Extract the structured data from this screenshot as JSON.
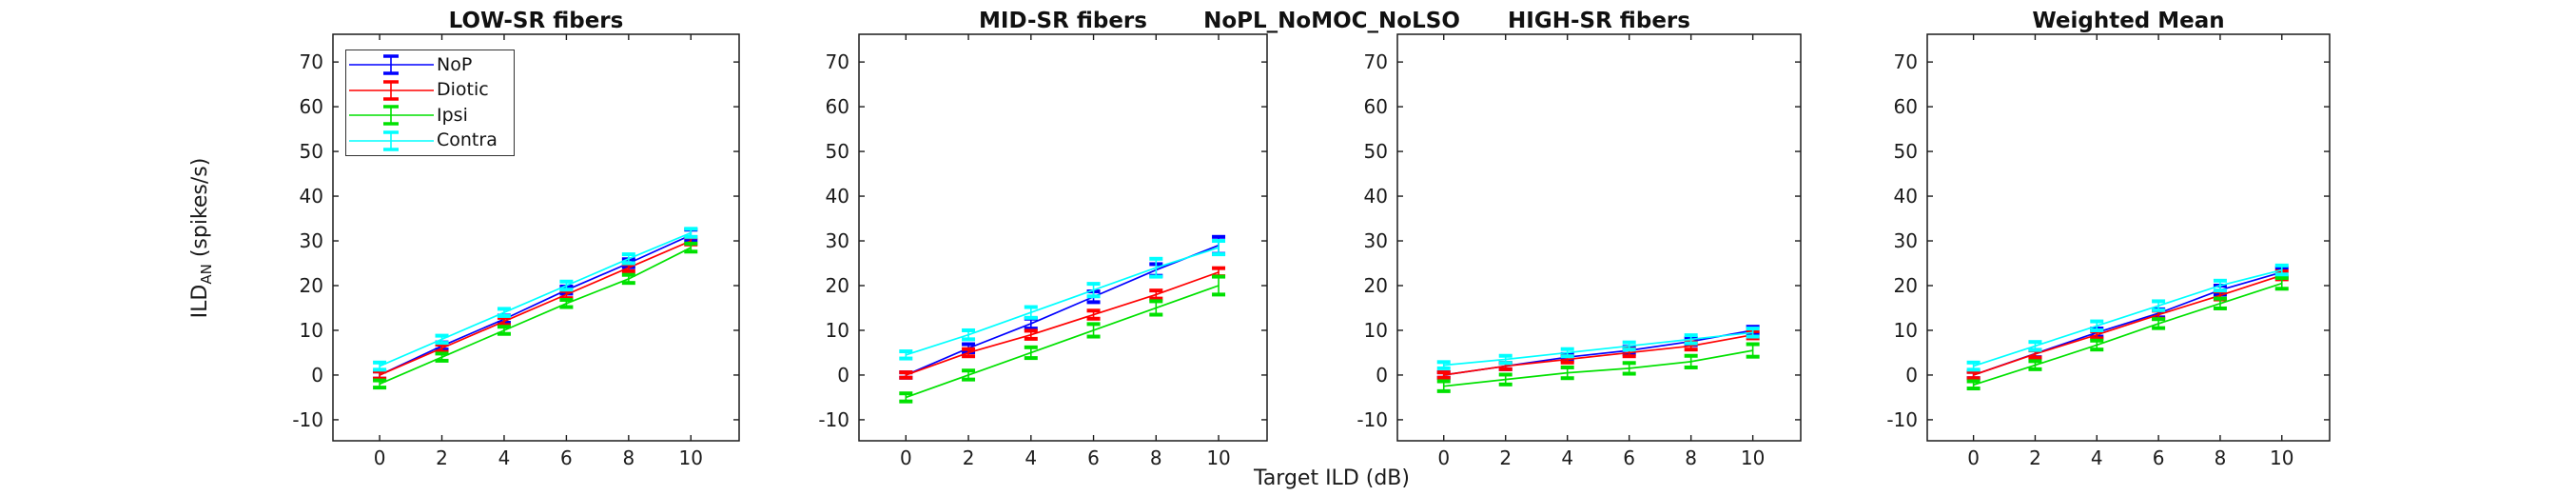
{
  "figure": {
    "suptitle": "NoPL_NoMOC_NoLSO",
    "xlabel": "Target ILD (dB)",
    "ylabel_prefix": "ILD",
    "ylabel_subscript": "AN",
    "ylabel_suffix": " (spikes/s)",
    "background": "#ffffff",
    "axis_color": "#1c1c1c"
  },
  "legend": {
    "position": "top-left-of-first-panel",
    "entries": [
      {
        "label": "NoP",
        "color": "#0000ff"
      },
      {
        "label": "Diotic",
        "color": "#ff0000"
      },
      {
        "label": "Ipsi",
        "color": "#00e100"
      },
      {
        "label": "Contra",
        "color": "#00ffff"
      }
    ]
  },
  "chart_data": [
    {
      "type": "line",
      "title": "LOW-SR fibers",
      "x": [
        0,
        2,
        4,
        6,
        8,
        10
      ],
      "xlim": [
        -1.5,
        11.55
      ],
      "ylim": [
        -14.7,
        76.2
      ],
      "xticks": [
        0,
        2,
        4,
        6,
        8,
        10
      ],
      "yticks": [
        -10,
        0,
        10,
        20,
        30,
        40,
        50,
        60,
        70
      ],
      "grid": false,
      "series": [
        {
          "name": "NoP",
          "color": "#0000ff",
          "values": [
            0,
            6.5,
            12.5,
            19,
            25,
            31.3
          ],
          "errors": [
            0.8,
            0.8,
            0.8,
            0.8,
            0.9,
            1.2
          ]
        },
        {
          "name": "Diotic",
          "color": "#ff0000",
          "values": [
            0,
            6,
            12,
            18,
            24,
            30
          ],
          "errors": [
            0.8,
            0.8,
            0.8,
            0.8,
            0.8,
            0.8
          ]
        },
        {
          "name": "Ipsi",
          "color": "#00e100",
          "values": [
            -2,
            4,
            10,
            16,
            21.5,
            28.5
          ],
          "errors": [
            0.8,
            0.8,
            0.8,
            0.8,
            0.9,
            0.9
          ]
        },
        {
          "name": "Contra",
          "color": "#00ffff",
          "values": [
            2,
            8,
            14,
            20,
            26,
            31.8
          ],
          "errors": [
            0.8,
            0.8,
            0.8,
            0.9,
            1.0,
            0.9
          ]
        }
      ]
    },
    {
      "type": "line",
      "title": "MID-SR fibers",
      "x": [
        0,
        2,
        4,
        6,
        8,
        10
      ],
      "xlim": [
        -1.5,
        11.55
      ],
      "ylim": [
        -14.7,
        76.2
      ],
      "xticks": [
        0,
        2,
        4,
        6,
        8,
        10
      ],
      "yticks": [
        -10,
        0,
        10,
        20,
        30,
        40,
        50,
        60,
        70
      ],
      "grid": false,
      "series": [
        {
          "name": "NoP",
          "color": "#0000ff",
          "values": [
            0,
            6,
            11.5,
            17.5,
            23.5,
            29
          ],
          "errors": [
            0.6,
            0.9,
            1.1,
            1.2,
            1.3,
            1.9
          ]
        },
        {
          "name": "Diotic",
          "color": "#ff0000",
          "values": [
            0,
            5,
            9,
            13.5,
            18,
            23
          ],
          "errors": [
            0.6,
            0.8,
            0.9,
            0.9,
            0.9,
            0.9
          ]
        },
        {
          "name": "Ipsi",
          "color": "#00e100",
          "values": [
            -5,
            0,
            5,
            10,
            15,
            20
          ],
          "errors": [
            0.9,
            1.0,
            1.2,
            1.4,
            1.5,
            2.0
          ]
        },
        {
          "name": "Contra",
          "color": "#00ffff",
          "values": [
            4.5,
            9,
            14,
            19,
            24,
            28.5
          ],
          "errors": [
            0.8,
            1.0,
            1.2,
            1.4,
            2.0,
            1.5
          ]
        }
      ]
    },
    {
      "type": "line",
      "title": "HIGH-SR fibers",
      "x": [
        0,
        2,
        4,
        6,
        8,
        10
      ],
      "xlim": [
        -1.5,
        11.55
      ],
      "ylim": [
        -14.7,
        76.2
      ],
      "xticks": [
        0,
        2,
        4,
        6,
        8,
        10
      ],
      "yticks": [
        -10,
        0,
        10,
        20,
        30,
        40,
        50,
        60,
        70
      ],
      "grid": false,
      "series": [
        {
          "name": "NoP",
          "color": "#0000ff",
          "values": [
            0,
            2,
            4,
            5.5,
            7.5,
            10
          ],
          "errors": [
            0.6,
            0.7,
            0.7,
            0.8,
            0.8,
            0.8
          ]
        },
        {
          "name": "Diotic",
          "color": "#ff0000",
          "values": [
            0,
            2,
            3.5,
            5,
            6.5,
            9
          ],
          "errors": [
            0.6,
            0.7,
            0.7,
            0.8,
            0.8,
            0.8
          ]
        },
        {
          "name": "Ipsi",
          "color": "#00e100",
          "values": [
            -2.5,
            -1,
            0.5,
            1.5,
            3,
            5.5
          ],
          "errors": [
            1.1,
            1.1,
            1.2,
            1.2,
            1.3,
            1.4
          ]
        },
        {
          "name": "Contra",
          "color": "#00ffff",
          "values": [
            2.2,
            3.5,
            5,
            6.5,
            8,
            9.5
          ],
          "errors": [
            0.7,
            0.8,
            0.8,
            0.8,
            0.9,
            0.9
          ]
        }
      ]
    },
    {
      "type": "line",
      "title": "Weighted Mean",
      "x": [
        0,
        2,
        4,
        6,
        8,
        10
      ],
      "xlim": [
        -1.5,
        11.55
      ],
      "ylim": [
        -14.7,
        76.2
      ],
      "xticks": [
        0,
        2,
        4,
        6,
        8,
        10
      ],
      "yticks": [
        -10,
        0,
        10,
        20,
        30,
        40,
        50,
        60,
        70
      ],
      "grid": false,
      "series": [
        {
          "name": "NoP",
          "color": "#0000ff",
          "values": [
            0,
            4.8,
            9.5,
            13.8,
            19,
            23
          ],
          "errors": [
            0.7,
            0.8,
            0.9,
            0.9,
            1.0,
            1.0
          ]
        },
        {
          "name": "Diotic",
          "color": "#ff0000",
          "values": [
            0,
            4.7,
            9,
            13.5,
            17.8,
            22.3
          ],
          "errors": [
            0.7,
            0.8,
            0.8,
            0.9,
            0.9,
            0.9
          ]
        },
        {
          "name": "Ipsi",
          "color": "#00e100",
          "values": [
            -2.2,
            2.2,
            6.7,
            11.5,
            16,
            20.5
          ],
          "errors": [
            0.8,
            0.9,
            1.0,
            1.0,
            1.1,
            1.2
          ]
        },
        {
          "name": "Contra",
          "color": "#00ffff",
          "values": [
            2,
            6.5,
            11,
            15.5,
            20,
            23.5
          ],
          "errors": [
            0.8,
            0.9,
            1.0,
            1.0,
            1.1,
            1.0
          ]
        }
      ]
    }
  ]
}
